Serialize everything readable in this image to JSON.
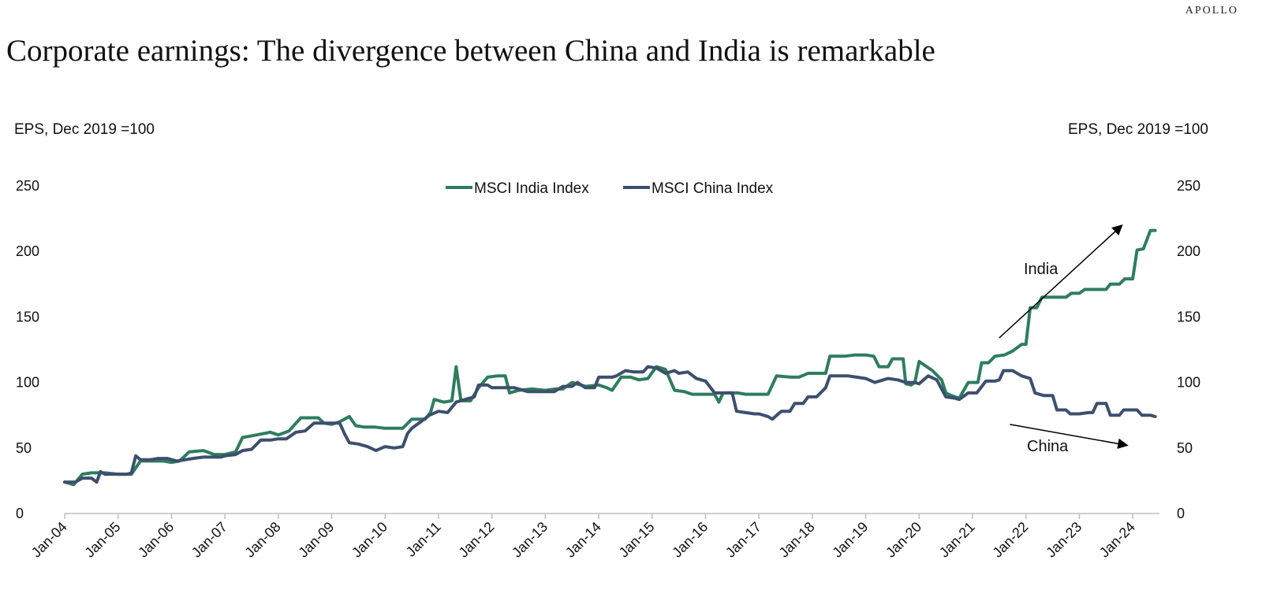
{
  "brand": "APOLLO",
  "chart_data": {
    "type": "line",
    "title": "Corporate earnings: The divergence between China and India is remarkable",
    "ylabel_left": "EPS, Dec 2019 =100",
    "ylabel_right": "EPS, Dec 2019 =100",
    "ylim": [
      0,
      250
    ],
    "yticks": [
      "0",
      "50",
      "100",
      "150",
      "200",
      "250"
    ],
    "xlim": [
      2004.0,
      2024.5
    ],
    "xticks": [
      "Jan-04",
      "Jan-05",
      "Jan-06",
      "Jan-07",
      "Jan-08",
      "Jan-09",
      "Jan-10",
      "Jan-11",
      "Jan-12",
      "Jan-13",
      "Jan-14",
      "Jan-15",
      "Jan-16",
      "Jan-17",
      "Jan-18",
      "Jan-19",
      "Jan-20",
      "Jan-21",
      "Jan-22",
      "Jan-23",
      "Jan-24"
    ],
    "legend_position": "top-center",
    "grid": false,
    "series": [
      {
        "name": "MSCI India Index",
        "color": "#2e7d5e",
        "points": [
          [
            2004.0,
            24
          ],
          [
            2004.17,
            22
          ],
          [
            2004.33,
            30
          ],
          [
            2004.5,
            31
          ],
          [
            2004.75,
            31
          ],
          [
            2005.0,
            30
          ],
          [
            2005.25,
            30
          ],
          [
            2005.42,
            40
          ],
          [
            2005.6,
            40
          ],
          [
            2005.85,
            40
          ],
          [
            2006.0,
            39
          ],
          [
            2006.15,
            40
          ],
          [
            2006.33,
            47
          ],
          [
            2006.6,
            48
          ],
          [
            2006.8,
            45
          ],
          [
            2007.0,
            45
          ],
          [
            2007.2,
            47
          ],
          [
            2007.33,
            58
          ],
          [
            2007.6,
            60
          ],
          [
            2007.85,
            62
          ],
          [
            2008.0,
            60
          ],
          [
            2008.2,
            63
          ],
          [
            2008.42,
            73
          ],
          [
            2008.6,
            73
          ],
          [
            2008.75,
            73
          ],
          [
            2008.85,
            69
          ],
          [
            2009.0,
            68
          ],
          [
            2009.15,
            70
          ],
          [
            2009.33,
            74
          ],
          [
            2009.45,
            67
          ],
          [
            2009.6,
            66
          ],
          [
            2009.8,
            66
          ],
          [
            2010.0,
            65
          ],
          [
            2010.2,
            65
          ],
          [
            2010.33,
            65
          ],
          [
            2010.5,
            72
          ],
          [
            2010.75,
            72
          ],
          [
            2010.85,
            77
          ],
          [
            2010.92,
            87
          ],
          [
            2011.1,
            85
          ],
          [
            2011.25,
            86
          ],
          [
            2011.33,
            112
          ],
          [
            2011.42,
            86
          ],
          [
            2011.6,
            86
          ],
          [
            2011.75,
            96
          ],
          [
            2011.92,
            104
          ],
          [
            2012.1,
            105
          ],
          [
            2012.25,
            105
          ],
          [
            2012.33,
            92
          ],
          [
            2012.5,
            94
          ],
          [
            2012.75,
            95
          ],
          [
            2013.0,
            94
          ],
          [
            2013.2,
            95
          ],
          [
            2013.33,
            95
          ],
          [
            2013.5,
            100
          ],
          [
            2013.75,
            97
          ],
          [
            2014.0,
            98
          ],
          [
            2014.15,
            96
          ],
          [
            2014.25,
            94
          ],
          [
            2014.42,
            104
          ],
          [
            2014.6,
            104
          ],
          [
            2014.75,
            102
          ],
          [
            2014.92,
            103
          ],
          [
            2015.08,
            112
          ],
          [
            2015.25,
            110
          ],
          [
            2015.42,
            94
          ],
          [
            2015.6,
            93
          ],
          [
            2015.75,
            91
          ],
          [
            2016.0,
            91
          ],
          [
            2016.17,
            91
          ],
          [
            2016.25,
            85
          ],
          [
            2016.33,
            92
          ],
          [
            2016.6,
            92
          ],
          [
            2016.75,
            91
          ],
          [
            2017.0,
            91
          ],
          [
            2017.17,
            91
          ],
          [
            2017.33,
            105
          ],
          [
            2017.6,
            104
          ],
          [
            2017.75,
            104
          ],
          [
            2017.92,
            107
          ],
          [
            2018.15,
            107
          ],
          [
            2018.25,
            107
          ],
          [
            2018.33,
            120
          ],
          [
            2018.6,
            120
          ],
          [
            2018.8,
            121
          ],
          [
            2019.0,
            121
          ],
          [
            2019.15,
            120
          ],
          [
            2019.25,
            112
          ],
          [
            2019.42,
            112
          ],
          [
            2019.5,
            118
          ],
          [
            2019.7,
            118
          ],
          [
            2019.75,
            99
          ],
          [
            2019.85,
            98
          ],
          [
            2019.92,
            100
          ],
          [
            2020.0,
            116
          ],
          [
            2020.25,
            109
          ],
          [
            2020.42,
            102
          ],
          [
            2020.5,
            92
          ],
          [
            2020.6,
            90
          ],
          [
            2020.75,
            88
          ],
          [
            2020.92,
            100
          ],
          [
            2021.1,
            100
          ],
          [
            2021.17,
            115
          ],
          [
            2021.3,
            115
          ],
          [
            2021.42,
            120
          ],
          [
            2021.6,
            121
          ],
          [
            2021.75,
            124
          ],
          [
            2021.92,
            129
          ],
          [
            2022.0,
            129
          ],
          [
            2022.08,
            157
          ],
          [
            2022.2,
            157
          ],
          [
            2022.3,
            165
          ],
          [
            2022.5,
            165
          ],
          [
            2022.75,
            165
          ],
          [
            2022.85,
            168
          ],
          [
            2023.0,
            168
          ],
          [
            2023.1,
            171
          ],
          [
            2023.25,
            171
          ],
          [
            2023.5,
            171
          ],
          [
            2023.58,
            175
          ],
          [
            2023.75,
            175
          ],
          [
            2023.85,
            179
          ],
          [
            2024.0,
            179
          ],
          [
            2024.08,
            201
          ],
          [
            2024.2,
            202
          ],
          [
            2024.33,
            216
          ],
          [
            2024.42,
            216
          ]
        ]
      },
      {
        "name": "MSCI China Index",
        "color": "#3d4f6e",
        "points": [
          [
            2004.0,
            24
          ],
          [
            2004.2,
            24
          ],
          [
            2004.33,
            27
          ],
          [
            2004.5,
            27
          ],
          [
            2004.6,
            24
          ],
          [
            2004.67,
            32
          ],
          [
            2004.75,
            30
          ],
          [
            2005.0,
            30
          ],
          [
            2005.17,
            30
          ],
          [
            2005.25,
            31
          ],
          [
            2005.33,
            44
          ],
          [
            2005.42,
            41
          ],
          [
            2005.6,
            41
          ],
          [
            2005.75,
            42
          ],
          [
            2005.92,
            42
          ],
          [
            2006.1,
            40
          ],
          [
            2006.25,
            41
          ],
          [
            2006.4,
            42
          ],
          [
            2006.6,
            43
          ],
          [
            2006.75,
            43
          ],
          [
            2006.92,
            43
          ],
          [
            2007.0,
            44
          ],
          [
            2007.2,
            45
          ],
          [
            2007.33,
            48
          ],
          [
            2007.5,
            49
          ],
          [
            2007.67,
            56
          ],
          [
            2007.85,
            56
          ],
          [
            2008.0,
            57
          ],
          [
            2008.15,
            57
          ],
          [
            2008.33,
            62
          ],
          [
            2008.5,
            63
          ],
          [
            2008.67,
            69
          ],
          [
            2008.85,
            69
          ],
          [
            2009.0,
            69
          ],
          [
            2009.15,
            69
          ],
          [
            2009.25,
            60
          ],
          [
            2009.33,
            54
          ],
          [
            2009.5,
            53
          ],
          [
            2009.67,
            51
          ],
          [
            2009.83,
            48
          ],
          [
            2010.0,
            51
          ],
          [
            2010.17,
            50
          ],
          [
            2010.33,
            51
          ],
          [
            2010.42,
            61
          ],
          [
            2010.5,
            65
          ],
          [
            2010.67,
            70
          ],
          [
            2010.83,
            75
          ],
          [
            2011.0,
            78
          ],
          [
            2011.17,
            77
          ],
          [
            2011.33,
            85
          ],
          [
            2011.5,
            87
          ],
          [
            2011.67,
            89
          ],
          [
            2011.75,
            98
          ],
          [
            2011.92,
            98
          ],
          [
            2012.0,
            96
          ],
          [
            2012.25,
            96
          ],
          [
            2012.42,
            96
          ],
          [
            2012.5,
            95
          ],
          [
            2012.67,
            93
          ],
          [
            2012.85,
            93
          ],
          [
            2013.0,
            93
          ],
          [
            2013.17,
            93
          ],
          [
            2013.33,
            97
          ],
          [
            2013.5,
            97
          ],
          [
            2013.6,
            100
          ],
          [
            2013.75,
            96
          ],
          [
            2013.92,
            96
          ],
          [
            2014.0,
            104
          ],
          [
            2014.25,
            104
          ],
          [
            2014.33,
            105
          ],
          [
            2014.5,
            109
          ],
          [
            2014.67,
            108
          ],
          [
            2014.83,
            108
          ],
          [
            2014.92,
            112
          ],
          [
            2015.08,
            111
          ],
          [
            2015.25,
            107
          ],
          [
            2015.42,
            109
          ],
          [
            2015.5,
            107
          ],
          [
            2015.67,
            108
          ],
          [
            2015.83,
            103
          ],
          [
            2016.0,
            101
          ],
          [
            2016.17,
            92
          ],
          [
            2016.33,
            92
          ],
          [
            2016.5,
            92
          ],
          [
            2016.58,
            78
          ],
          [
            2016.75,
            77
          ],
          [
            2016.92,
            76
          ],
          [
            2017.0,
            76
          ],
          [
            2017.17,
            74
          ],
          [
            2017.25,
            72
          ],
          [
            2017.42,
            78
          ],
          [
            2017.58,
            78
          ],
          [
            2017.67,
            84
          ],
          [
            2017.83,
            84
          ],
          [
            2017.92,
            89
          ],
          [
            2018.08,
            89
          ],
          [
            2018.25,
            96
          ],
          [
            2018.33,
            105
          ],
          [
            2018.5,
            105
          ],
          [
            2018.67,
            105
          ],
          [
            2018.83,
            104
          ],
          [
            2019.0,
            103
          ],
          [
            2019.17,
            100
          ],
          [
            2019.33,
            102
          ],
          [
            2019.42,
            103
          ],
          [
            2019.6,
            102
          ],
          [
            2019.75,
            100
          ],
          [
            2019.92,
            100
          ],
          [
            2020.0,
            99
          ],
          [
            2020.17,
            105
          ],
          [
            2020.33,
            102
          ],
          [
            2020.5,
            89
          ],
          [
            2020.67,
            88
          ],
          [
            2020.75,
            87
          ],
          [
            2020.92,
            92
          ],
          [
            2021.08,
            92
          ],
          [
            2021.25,
            101
          ],
          [
            2021.42,
            101
          ],
          [
            2021.5,
            102
          ],
          [
            2021.58,
            109
          ],
          [
            2021.75,
            109
          ],
          [
            2021.92,
            105
          ],
          [
            2022.08,
            103
          ],
          [
            2022.17,
            92
          ],
          [
            2022.33,
            90
          ],
          [
            2022.5,
            90
          ],
          [
            2022.58,
            79
          ],
          [
            2022.75,
            79
          ],
          [
            2022.83,
            76
          ],
          [
            2023.0,
            76
          ],
          [
            2023.17,
            77
          ],
          [
            2023.25,
            77
          ],
          [
            2023.33,
            84
          ],
          [
            2023.5,
            84
          ],
          [
            2023.58,
            75
          ],
          [
            2023.75,
            75
          ],
          [
            2023.83,
            79
          ],
          [
            2024.0,
            79
          ],
          [
            2024.08,
            79
          ],
          [
            2024.17,
            75
          ],
          [
            2024.33,
            75
          ],
          [
            2024.42,
            74
          ]
        ]
      }
    ],
    "annotations": [
      {
        "text": "India",
        "arrow_from": [
          2021.5,
          134
        ],
        "arrow_to": [
          2023.8,
          220
        ]
      },
      {
        "text": "China",
        "arrow_from": [
          2021.7,
          68
        ],
        "arrow_to": [
          2023.9,
          52
        ]
      }
    ]
  }
}
